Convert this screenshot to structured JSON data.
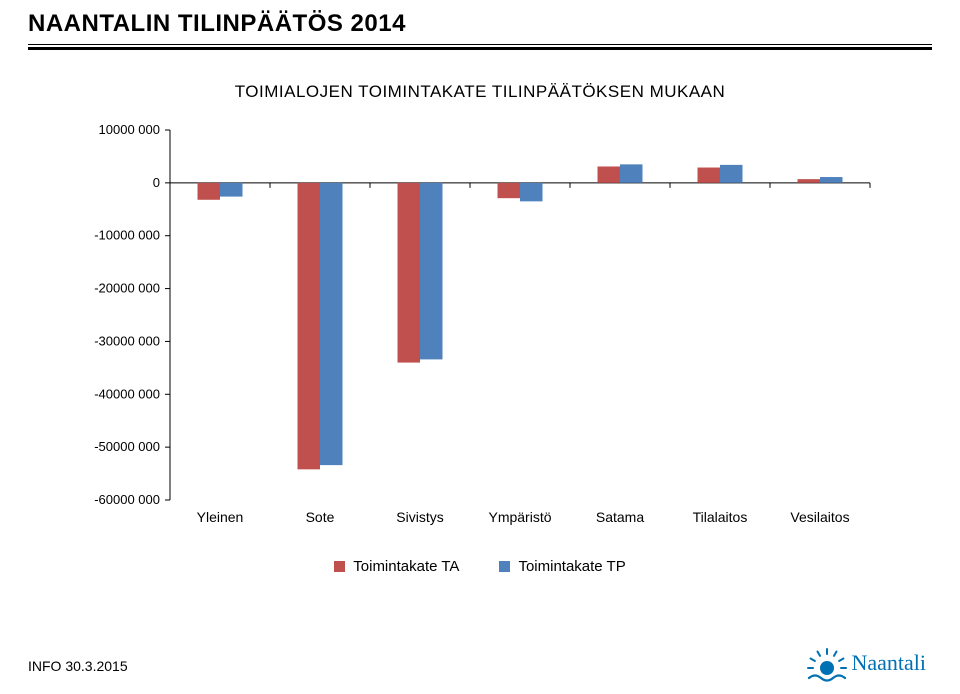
{
  "header_title": "NAANTALIN TILINPÄÄTÖS 2014",
  "chart": {
    "type": "bar",
    "title": "TOIMIALOJEN TOIMINTAKATE TILINPÄÄTÖKSEN MUKAAN",
    "categories": [
      "Yleinen",
      "Sote",
      "Sivistys",
      "Ympäristö",
      "Satama",
      "Tilalaitos",
      "Vesilaitos"
    ],
    "series": [
      {
        "name": "Toimintakate TA",
        "color": "#c0504d",
        "values": [
          -3200000,
          -54200000,
          -34000000,
          -2900000,
          3100000,
          2900000,
          700000
        ]
      },
      {
        "name": "Toimintakate TP",
        "color": "#4f81bd",
        "values": [
          -2600000,
          -53400000,
          -33400000,
          -3500000,
          3500000,
          3400000,
          1100000
        ]
      }
    ],
    "ylim": [
      -60000000,
      10000000
    ],
    "ytick_step": 10000000,
    "ytick_labels": [
      "-60000 000",
      "-50000 000",
      "-40000 000",
      "-30000 000",
      "-20000 000",
      "-10000 000",
      "0",
      "10000 000"
    ],
    "grid_color": "#000000",
    "background_color": "#ffffff",
    "label_fontsize": 14
  },
  "legend": {
    "items": [
      {
        "color": "#c0504d",
        "label": "Toimintakate TA"
      },
      {
        "color": "#4f81bd",
        "label": "Toimintakate TP"
      }
    ]
  },
  "footer": {
    "left_text": "INFO 30.3.2015",
    "logo_text": "Naantali",
    "logo_color": "#0071b3"
  }
}
